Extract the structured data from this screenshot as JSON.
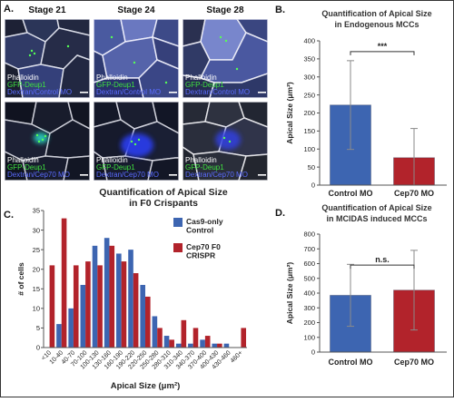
{
  "panel_a": {
    "label": "A.",
    "stage_labels": [
      "Stage 21",
      "Stage 24",
      "Stage 28"
    ],
    "rows": [
      {
        "phalloidin": "Phalloidin",
        "gfp": "GFP-Deup1",
        "dextran": "Dextran/Control MO"
      },
      {
        "phalloidin": "Phalloidin",
        "gfp": "GFP-Deup1",
        "dextran": "Dextran/Cep70 MO"
      }
    ]
  },
  "label_colors": {
    "phalloidin": "#ffffff",
    "gfp": "#3fe03f",
    "dextran": "#5b6cff"
  },
  "chart_data": [
    {
      "panel": "B.",
      "type": "bar",
      "title_lines": [
        "Quantification of Apical Size",
        "in Endogenous MCCs"
      ],
      "ylabel": "Apical Size (μm²)",
      "ylim": [
        0,
        400
      ],
      "yticks": [
        0,
        50,
        100,
        150,
        200,
        250,
        300,
        350,
        400
      ],
      "categories": [
        "Control MO",
        "Cep70 MO"
      ],
      "values": [
        222,
        76
      ],
      "error": [
        123,
        81
      ],
      "colors": [
        "#3d65b1",
        "#b2232b"
      ],
      "significance": "***",
      "grid": false
    },
    {
      "panel": "C.",
      "type": "bar",
      "title_lines": [
        "Quantification of Apical Size",
        "in F0 Crispants"
      ],
      "xlabel": "Apical Size (μm²)",
      "ylabel": "# of cells",
      "ylim": [
        0,
        35
      ],
      "yticks": [
        0,
        5,
        10,
        15,
        20,
        25,
        30,
        35
      ],
      "categories": [
        "<10",
        "10-40",
        "40-70",
        "70-100",
        "100-130",
        "130-160",
        "160-190",
        "190-220",
        "220-250",
        "250-280",
        "280-310",
        "310-340",
        "340-370",
        "370-400",
        "400-430",
        "430-460",
        "460+"
      ],
      "series": [
        {
          "name_lines": [
            "Cas9-only",
            "Control"
          ],
          "color": "#3d65b1",
          "values": [
            0,
            6,
            10,
            16,
            26,
            28,
            24,
            25,
            16,
            8,
            3,
            1,
            1,
            2,
            1,
            1,
            0
          ]
        },
        {
          "name_lines": [
            "Cep70 F0",
            "CRISPR"
          ],
          "color": "#b2232b",
          "values": [
            21,
            33,
            21,
            22,
            21,
            26,
            22,
            19,
            13,
            5,
            2,
            7,
            5,
            3,
            1,
            0,
            5
          ]
        }
      ],
      "legend": "top-right",
      "grid": false
    },
    {
      "panel": "D.",
      "type": "bar",
      "title_lines": [
        "Quantification of Apical Size",
        "in MCIDAS induced MCCs"
      ],
      "ylabel": "Apical Size (μm²)",
      "ylim": [
        0,
        800
      ],
      "yticks": [
        0,
        100,
        200,
        300,
        400,
        500,
        600,
        700,
        800
      ],
      "categories": [
        "Control MO",
        "Cep70 MO"
      ],
      "values": [
        385,
        420
      ],
      "error": [
        210,
        270
      ],
      "colors": [
        "#3d65b1",
        "#b2232b"
      ],
      "significance": "n.s.",
      "grid": false
    }
  ]
}
